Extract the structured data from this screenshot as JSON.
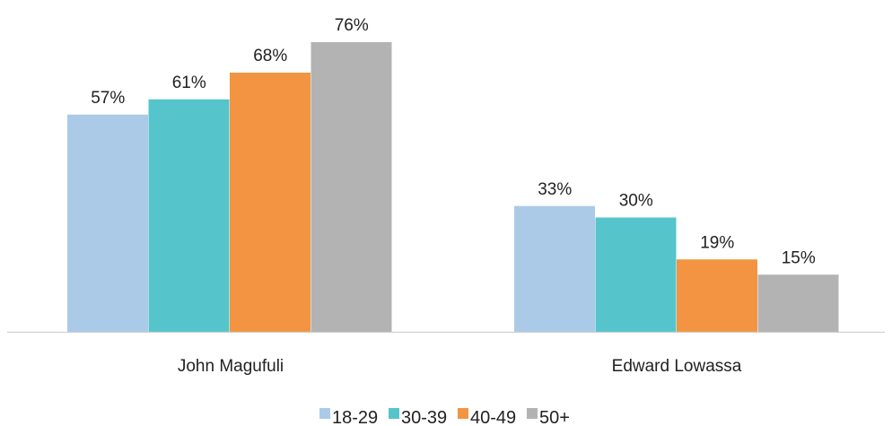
{
  "chart_data": {
    "type": "bar",
    "categories": [
      "John Magufuli",
      "Edward Lowassa"
    ],
    "series": [
      {
        "name": "18-29",
        "values": [
          57,
          33
        ],
        "labels": [
          "57%",
          "33%"
        ],
        "color": "#abcae8"
      },
      {
        "name": "30-39",
        "values": [
          61,
          30
        ],
        "labels": [
          "61%",
          "30%"
        ],
        "color": "#56c4cb"
      },
      {
        "name": "40-49",
        "values": [
          68,
          19
        ],
        "labels": [
          "68%",
          "19%"
        ],
        "color": "#f29441"
      },
      {
        "name": "50+",
        "values": [
          76,
          15
        ],
        "labels": [
          "76%",
          "15%"
        ],
        "color": "#b3b3b3"
      }
    ],
    "unit": "%",
    "ylim": [
      0,
      76
    ],
    "grid": false,
    "legend_position": "bottom",
    "title": "",
    "xlabel": "",
    "ylabel": ""
  }
}
